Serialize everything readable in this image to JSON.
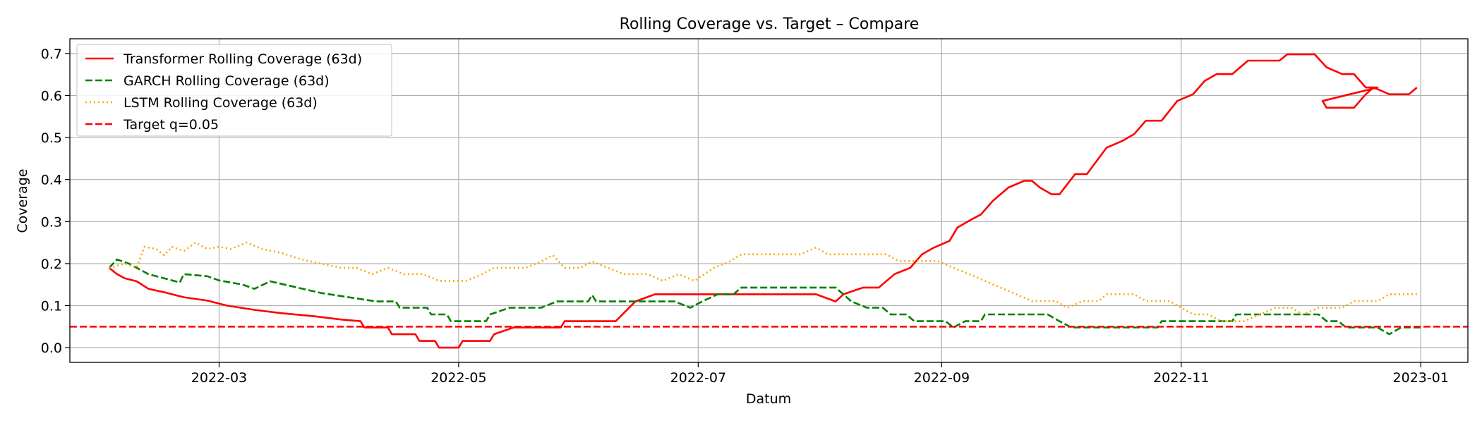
{
  "chart_data": {
    "type": "line",
    "title": "Rolling Coverage vs. Target – Compare",
    "xlabel": "Datum",
    "ylabel": "Coverage",
    "x_type": "date",
    "xlim": [
      "2022-01-22",
      "2023-01-13"
    ],
    "ylim": [
      -0.035,
      0.735
    ],
    "x_ticks": [
      "2022-03-01",
      "2022-05-01",
      "2022-07-01",
      "2022-09-01",
      "2022-11-01",
      "2023-01-01"
    ],
    "x_tick_labels": [
      "2022-03",
      "2022-05",
      "2022-07",
      "2022-09",
      "2022-11",
      "2023-01"
    ],
    "y_ticks": [
      0.0,
      0.1,
      0.2,
      0.3,
      0.4,
      0.5,
      0.6,
      0.7
    ],
    "y_tick_labels": [
      "0.0",
      "0.1",
      "0.2",
      "0.3",
      "0.4",
      "0.5",
      "0.6",
      "0.7"
    ],
    "grid": true,
    "legend_position": "top-left",
    "series": [
      {
        "name": "Transformer Rolling Coverage (63d)",
        "color": "#ff0000",
        "style": "solid",
        "points": [
          [
            "2022-02-01",
            0.19
          ],
          [
            "2022-02-03",
            0.175
          ],
          [
            "2022-02-05",
            0.165
          ],
          [
            "2022-02-08",
            0.158
          ],
          [
            "2022-02-11",
            0.14
          ],
          [
            "2022-02-15",
            0.132
          ],
          [
            "2022-02-20",
            0.12
          ],
          [
            "2022-02-26",
            0.112
          ],
          [
            "2022-03-03",
            0.1
          ],
          [
            "2022-03-10",
            0.09
          ],
          [
            "2022-03-17",
            0.082
          ],
          [
            "2022-03-25",
            0.075
          ],
          [
            "2022-04-01",
            0.067
          ],
          [
            "2022-04-06",
            0.063
          ],
          [
            "2022-04-07",
            0.048
          ],
          [
            "2022-04-13",
            0.048
          ],
          [
            "2022-04-14",
            0.032
          ],
          [
            "2022-04-20",
            0.032
          ],
          [
            "2022-04-21",
            0.016
          ],
          [
            "2022-04-25",
            0.016
          ],
          [
            "2022-04-26",
            0.0
          ],
          [
            "2022-05-01",
            0.0
          ],
          [
            "2022-05-02",
            0.016
          ],
          [
            "2022-05-09",
            0.016
          ],
          [
            "2022-05-10",
            0.032
          ],
          [
            "2022-05-15",
            0.048
          ],
          [
            "2022-05-27",
            0.048
          ],
          [
            "2022-05-28",
            0.063
          ],
          [
            "2022-06-10",
            0.063
          ],
          [
            "2022-06-15",
            0.11
          ],
          [
            "2022-06-20",
            0.127
          ],
          [
            "2022-07-31",
            0.127
          ],
          [
            "2022-08-05",
            0.11
          ],
          [
            "2022-08-07",
            0.127
          ],
          [
            "2022-08-12",
            0.143
          ],
          [
            "2022-08-16",
            0.143
          ],
          [
            "2022-08-20",
            0.175
          ],
          [
            "2022-08-24",
            0.19
          ],
          [
            "2022-08-27",
            0.222
          ],
          [
            "2022-08-30",
            0.238
          ],
          [
            "2022-09-03",
            0.254
          ],
          [
            "2022-09-05",
            0.286
          ],
          [
            "2022-09-08",
            0.302
          ],
          [
            "2022-09-11",
            0.317
          ],
          [
            "2022-09-14",
            0.349
          ],
          [
            "2022-09-18",
            0.381
          ],
          [
            "2022-09-22",
            0.397
          ],
          [
            "2022-09-24",
            0.397
          ],
          [
            "2022-09-26",
            0.381
          ],
          [
            "2022-09-29",
            0.365
          ],
          [
            "2022-10-01",
            0.365
          ],
          [
            "2022-10-05",
            0.413
          ],
          [
            "2022-10-08",
            0.413
          ],
          [
            "2022-10-13",
            0.476
          ],
          [
            "2022-10-17",
            0.492
          ],
          [
            "2022-10-20",
            0.508
          ],
          [
            "2022-10-23",
            0.54
          ],
          [
            "2022-10-27",
            0.54
          ],
          [
            "2022-10-31",
            0.587
          ],
          [
            "2022-11-04",
            0.603
          ],
          [
            "2022-11-07",
            0.635
          ],
          [
            "2022-11-10",
            0.651
          ],
          [
            "2022-11-14",
            0.651
          ],
          [
            "2022-11-18",
            0.683
          ],
          [
            "2022-11-26",
            0.683
          ],
          [
            "2022-11-28",
            0.698
          ],
          [
            "2022-12-05",
            0.698
          ],
          [
            "2022-12-08",
            0.667
          ],
          [
            "2022-12-12",
            0.651
          ],
          [
            "2022-12-15",
            0.651
          ],
          [
            "2022-12-18",
            0.619
          ],
          [
            "2022-12-21",
            0.619
          ],
          [
            "2022-12-24",
            0.603
          ],
          [
            "2022-12-30",
            0.603
          ],
          [
            "2023-01-01",
            0.587
          ],
          [
            "2023-01-07",
            0.587
          ],
          [
            "2022-12-07",
            0.587
          ],
          [
            "2022-12-08",
            0.571
          ],
          [
            "2022-12-15",
            0.571
          ],
          [
            "2022-12-18",
            0.603
          ],
          [
            "2022-12-20",
            0.619
          ],
          [
            "2022-12-24",
            0.603
          ],
          [
            "2022-12-29",
            0.603
          ],
          [
            "2022-12-31",
            0.619
          ]
        ]
      },
      {
        "name": "GARCH Rolling Coverage (63d)",
        "color": "#008000",
        "style": "dashed",
        "points": [
          [
            "2022-02-01",
            0.19
          ],
          [
            "2022-02-03",
            0.21
          ],
          [
            "2022-02-06",
            0.2
          ],
          [
            "2022-02-08",
            0.19
          ],
          [
            "2022-02-11",
            0.175
          ],
          [
            "2022-02-15",
            0.165
          ],
          [
            "2022-02-19",
            0.155
          ],
          [
            "2022-02-20",
            0.175
          ],
          [
            "2022-02-26",
            0.17
          ],
          [
            "2022-03-01",
            0.16
          ],
          [
            "2022-03-07",
            0.15
          ],
          [
            "2022-03-10",
            0.14
          ],
          [
            "2022-03-14",
            0.158
          ],
          [
            "2022-03-20",
            0.145
          ],
          [
            "2022-03-27",
            0.13
          ],
          [
            "2022-04-03",
            0.12
          ],
          [
            "2022-04-10",
            0.11
          ],
          [
            "2022-04-15",
            0.11
          ],
          [
            "2022-04-16",
            0.095
          ],
          [
            "2022-04-23",
            0.095
          ],
          [
            "2022-04-24",
            0.079
          ],
          [
            "2022-04-28",
            0.079
          ],
          [
            "2022-04-29",
            0.063
          ],
          [
            "2022-05-08",
            0.063
          ],
          [
            "2022-05-09",
            0.079
          ],
          [
            "2022-05-14",
            0.095
          ],
          [
            "2022-05-22",
            0.095
          ],
          [
            "2022-05-26",
            0.11
          ],
          [
            "2022-06-03",
            0.11
          ],
          [
            "2022-06-04",
            0.125
          ],
          [
            "2022-06-05",
            0.11
          ],
          [
            "2022-06-25",
            0.11
          ],
          [
            "2022-06-29",
            0.095
          ],
          [
            "2022-07-02",
            0.11
          ],
          [
            "2022-07-06",
            0.127
          ],
          [
            "2022-07-10",
            0.127
          ],
          [
            "2022-07-12",
            0.143
          ],
          [
            "2022-08-05",
            0.143
          ],
          [
            "2022-08-09",
            0.11
          ],
          [
            "2022-08-13",
            0.095
          ],
          [
            "2022-08-17",
            0.095
          ],
          [
            "2022-08-19",
            0.079
          ],
          [
            "2022-08-23",
            0.079
          ],
          [
            "2022-08-25",
            0.063
          ],
          [
            "2022-09-02",
            0.063
          ],
          [
            "2022-09-04",
            0.048
          ],
          [
            "2022-09-07",
            0.063
          ],
          [
            "2022-09-11",
            0.063
          ],
          [
            "2022-09-12",
            0.079
          ],
          [
            "2022-09-28",
            0.079
          ],
          [
            "2022-10-01",
            0.063
          ],
          [
            "2022-10-04",
            0.048
          ],
          [
            "2022-10-26",
            0.048
          ],
          [
            "2022-10-27",
            0.063
          ],
          [
            "2022-11-14",
            0.063
          ],
          [
            "2022-11-15",
            0.079
          ],
          [
            "2022-12-06",
            0.079
          ],
          [
            "2022-12-08",
            0.063
          ],
          [
            "2022-12-11",
            0.063
          ],
          [
            "2022-12-13",
            0.048
          ],
          [
            "2022-12-21",
            0.048
          ],
          [
            "2022-12-24",
            0.032
          ],
          [
            "2022-12-27",
            0.048
          ],
          [
            "2023-01-01",
            0.048
          ]
        ]
      },
      {
        "name": "LSTM Rolling Coverage (63d)",
        "color": "#ffa500",
        "style": "dotted",
        "points": [
          [
            "2022-02-01",
            0.19
          ],
          [
            "2022-02-05",
            0.2
          ],
          [
            "2022-02-08",
            0.19
          ],
          [
            "2022-02-10",
            0.24
          ],
          [
            "2022-02-13",
            0.235
          ],
          [
            "2022-02-15",
            0.22
          ],
          [
            "2022-02-17",
            0.24
          ],
          [
            "2022-02-20",
            0.23
          ],
          [
            "2022-02-23",
            0.25
          ],
          [
            "2022-02-26",
            0.235
          ],
          [
            "2022-03-01",
            0.24
          ],
          [
            "2022-03-04",
            0.235
          ],
          [
            "2022-03-08",
            0.25
          ],
          [
            "2022-03-12",
            0.235
          ],
          [
            "2022-03-17",
            0.225
          ],
          [
            "2022-03-22",
            0.21
          ],
          [
            "2022-03-27",
            0.2
          ],
          [
            "2022-04-01",
            0.19
          ],
          [
            "2022-04-05",
            0.19
          ],
          [
            "2022-04-09",
            0.175
          ],
          [
            "2022-04-13",
            0.19
          ],
          [
            "2022-04-17",
            0.175
          ],
          [
            "2022-04-22",
            0.175
          ],
          [
            "2022-04-26",
            0.159
          ],
          [
            "2022-05-03",
            0.159
          ],
          [
            "2022-05-07",
            0.175
          ],
          [
            "2022-05-10",
            0.19
          ],
          [
            "2022-05-18",
            0.19
          ],
          [
            "2022-05-22",
            0.205
          ],
          [
            "2022-05-25",
            0.22
          ],
          [
            "2022-05-28",
            0.19
          ],
          [
            "2022-06-01",
            0.19
          ],
          [
            "2022-06-04",
            0.205
          ],
          [
            "2022-06-08",
            0.19
          ],
          [
            "2022-06-12",
            0.175
          ],
          [
            "2022-06-18",
            0.175
          ],
          [
            "2022-06-22",
            0.159
          ],
          [
            "2022-06-26",
            0.175
          ],
          [
            "2022-06-30",
            0.159
          ],
          [
            "2022-07-05",
            0.19
          ],
          [
            "2022-07-09",
            0.205
          ],
          [
            "2022-07-12",
            0.222
          ],
          [
            "2022-07-27",
            0.222
          ],
          [
            "2022-07-31",
            0.238
          ],
          [
            "2022-08-03",
            0.222
          ],
          [
            "2022-08-18",
            0.222
          ],
          [
            "2022-08-21",
            0.206
          ],
          [
            "2022-08-31",
            0.206
          ],
          [
            "2022-09-04",
            0.19
          ],
          [
            "2022-09-08",
            0.175
          ],
          [
            "2022-09-12",
            0.159
          ],
          [
            "2022-09-16",
            0.143
          ],
          [
            "2022-09-20",
            0.127
          ],
          [
            "2022-09-24",
            0.111
          ],
          [
            "2022-09-30",
            0.111
          ],
          [
            "2022-10-03",
            0.095
          ],
          [
            "2022-10-07",
            0.111
          ],
          [
            "2022-10-11",
            0.111
          ],
          [
            "2022-10-13",
            0.127
          ],
          [
            "2022-10-20",
            0.127
          ],
          [
            "2022-10-23",
            0.111
          ],
          [
            "2022-10-29",
            0.111
          ],
          [
            "2022-11-01",
            0.095
          ],
          [
            "2022-11-04",
            0.079
          ],
          [
            "2022-11-08",
            0.079
          ],
          [
            "2022-11-11",
            0.063
          ],
          [
            "2022-11-17",
            0.063
          ],
          [
            "2022-11-21",
            0.079
          ],
          [
            "2022-11-25",
            0.095
          ],
          [
            "2022-11-29",
            0.095
          ],
          [
            "2022-12-02",
            0.079
          ],
          [
            "2022-12-06",
            0.095
          ],
          [
            "2022-12-12",
            0.095
          ],
          [
            "2022-12-15",
            0.111
          ],
          [
            "2022-12-21",
            0.111
          ],
          [
            "2022-12-24",
            0.127
          ],
          [
            "2022-12-31",
            0.127
          ]
        ]
      },
      {
        "name": "Target q=0.05",
        "color": "#ff0000",
        "style": "dashed",
        "kind": "hline",
        "y": 0.05
      }
    ]
  }
}
